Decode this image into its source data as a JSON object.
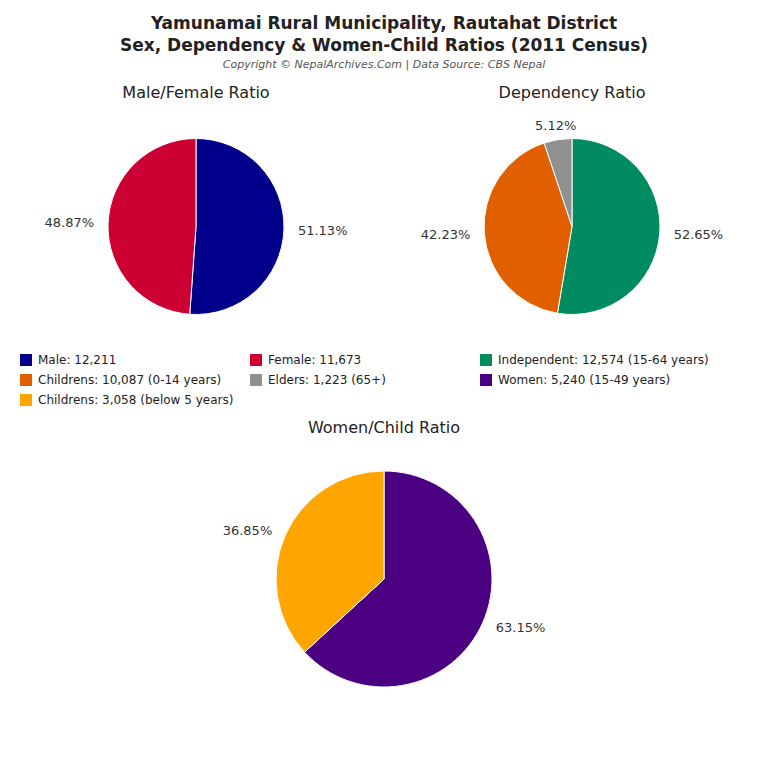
{
  "title": "Yamunamai Rural Municipality, Rautahat District",
  "subtitle": "Sex, Dependency & Women-Child Ratios (2011 Census)",
  "annotations": [
    "Copyright © NepalArchives.Com | Data Source: CBS Nepal"
  ],
  "chart_data": [
    {
      "type": "pie",
      "title": "Male/Female Ratio",
      "categories": [
        "Male: 12,211",
        "Female: 11,673"
      ],
      "values": [
        51.13,
        48.87
      ],
      "value_labels": [
        "51.13%",
        "48.87%"
      ],
      "colors": [
        "#00008B",
        "#CC0033"
      ],
      "data_labels": true,
      "legend": "bottom"
    },
    {
      "type": "pie",
      "title": "Dependency Ratio",
      "categories": [
        "Independent: 12,574 (15-64 years)",
        "Childrens: 10,087 (0-14 years)",
        "Elders: 1,223 (65+)"
      ],
      "values": [
        52.65,
        42.23,
        5.12
      ],
      "value_labels": [
        "52.65%",
        "42.23%",
        "5.12%"
      ],
      "colors": [
        "#008B60",
        "#E06000",
        "#909090"
      ],
      "data_labels": true,
      "legend": "bottom"
    },
    {
      "type": "pie",
      "title": "Women/Child Ratio",
      "categories": [
        "Women: 5,240 (15-49 years)",
        "Childrens: 3,058 (below 5 years)"
      ],
      "values": [
        63.15,
        36.85
      ],
      "value_labels": [
        "63.15%",
        "36.85%"
      ],
      "colors": [
        "#4B0082",
        "#FFA500"
      ],
      "data_labels": true,
      "legend": "bottom"
    }
  ]
}
